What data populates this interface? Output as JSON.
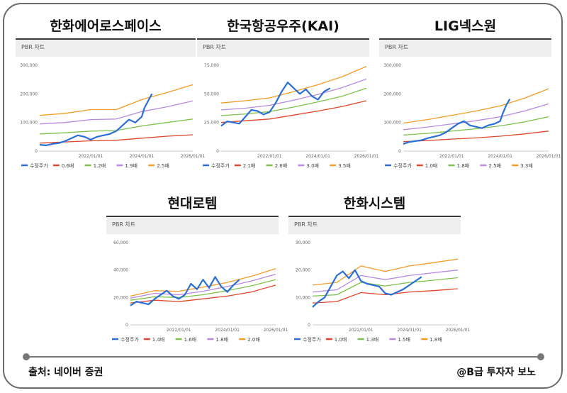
{
  "header_label": "PBR 차트",
  "source": "출처: 네이버 증권",
  "credit": "@B급 투자자 보노",
  "colors": {
    "price": "#2a6fd6",
    "band1": "#e0462a",
    "band2": "#7cc24a",
    "band3": "#b78ae0",
    "band4": "#f39c27"
  },
  "chart_data": [
    {
      "type": "line",
      "title": "한화에어로스페이스",
      "ylim": [
        0,
        300000
      ],
      "yticks": [
        "0",
        "100,000",
        "200,000",
        "300,000"
      ],
      "xrange": [
        2020.0,
        2026.0
      ],
      "xticks": [
        {
          "v": 2022.0,
          "label": "2022/01/01"
        },
        {
          "v": 2024.0,
          "label": "2024/01/01"
        },
        {
          "v": 2026.0,
          "label": "2026/01/01"
        }
      ],
      "series": [
        {
          "name": "수정주가",
          "x": [
            2020.0,
            2020.25,
            2020.5,
            2020.75,
            2021.0,
            2021.25,
            2021.5,
            2021.75,
            2022.0,
            2022.25,
            2022.5,
            2022.75,
            2023.0,
            2023.25,
            2023.5,
            2023.75,
            2024.0,
            2024.1,
            2024.25,
            2024.4
          ],
          "y": [
            22000,
            20000,
            25000,
            28000,
            35000,
            45000,
            55000,
            50000,
            40000,
            50000,
            55000,
            60000,
            70000,
            90000,
            110000,
            100000,
            120000,
            150000,
            175000,
            200000
          ]
        },
        {
          "name": "0.6배",
          "x": [
            2020.0,
            2021.0,
            2022.0,
            2023.0,
            2024.0,
            2025.0,
            2026.0
          ],
          "y": [
            28000,
            32000,
            36000,
            38000,
            45000,
            52000,
            57000
          ]
        },
        {
          "name": "1.2배",
          "x": [
            2020.0,
            2021.0,
            2022.0,
            2023.0,
            2024.0,
            2025.0,
            2026.0
          ],
          "y": [
            60000,
            64000,
            70000,
            72000,
            88000,
            100000,
            112000
          ]
        },
        {
          "name": "1.9배",
          "x": [
            2020.0,
            2021.0,
            2022.0,
            2023.0,
            2024.0,
            2025.0,
            2026.0
          ],
          "y": [
            95000,
            100000,
            110000,
            112000,
            138000,
            155000,
            175000
          ]
        },
        {
          "name": "2.5배",
          "x": [
            2020.0,
            2021.0,
            2022.0,
            2023.0,
            2024.0,
            2025.0,
            2026.0
          ],
          "y": [
            125000,
            132000,
            145000,
            145000,
            180000,
            205000,
            232000
          ]
        }
      ]
    },
    {
      "type": "line",
      "title": "한국항공우주(KAI)",
      "ylim": [
        0,
        75000
      ],
      "yticks": [
        "0",
        "25,000",
        "50,000",
        "75,000"
      ],
      "xrange": [
        2020.0,
        2026.0
      ],
      "xticks": [
        {
          "v": 2022.0,
          "label": "2022/01/01"
        },
        {
          "v": 2024.0,
          "label": "2024/01/01"
        },
        {
          "v": 2026.0,
          "label": "2026/01/01"
        }
      ],
      "series": [
        {
          "name": "수정주가",
          "x": [
            2020.0,
            2020.25,
            2020.5,
            2020.75,
            2021.0,
            2021.25,
            2021.5,
            2021.75,
            2022.0,
            2022.25,
            2022.5,
            2022.75,
            2023.0,
            2023.25,
            2023.5,
            2023.75,
            2024.0,
            2024.25,
            2024.5
          ],
          "y": [
            22000,
            26000,
            25000,
            24000,
            30000,
            36000,
            35000,
            32000,
            34000,
            42000,
            52000,
            60000,
            55000,
            50000,
            54000,
            48000,
            45000,
            52000,
            55000
          ]
        },
        {
          "name": "2.1배",
          "x": [
            2020.0,
            2021.0,
            2022.0,
            2023.0,
            2024.0,
            2025.0,
            2026.0
          ],
          "y": [
            25000,
            26500,
            28000,
            31500,
            35000,
            39000,
            44000
          ]
        },
        {
          "name": "2.6배",
          "x": [
            2020.0,
            2021.0,
            2022.0,
            2023.0,
            2024.0,
            2025.0,
            2026.0
          ],
          "y": [
            31000,
            32500,
            34500,
            38500,
            43000,
            48000,
            55000
          ]
        },
        {
          "name": "3.0배",
          "x": [
            2020.0,
            2021.0,
            2022.0,
            2023.0,
            2024.0,
            2025.0,
            2026.0
          ],
          "y": [
            36000,
            37500,
            40000,
            44500,
            49500,
            55500,
            63000
          ]
        },
        {
          "name": "3.5배",
          "x": [
            2020.0,
            2021.0,
            2022.0,
            2023.0,
            2024.0,
            2025.0,
            2026.0
          ],
          "y": [
            42000,
            44000,
            46500,
            52000,
            58000,
            65000,
            74000
          ]
        }
      ]
    },
    {
      "type": "line",
      "title": "LIG넥스원",
      "ylim": [
        0,
        300000
      ],
      "yticks": [
        "0",
        "100,000",
        "200,000",
        "300,000"
      ],
      "xrange": [
        2020.0,
        2026.0
      ],
      "xticks": [
        {
          "v": 2022.0,
          "label": "2022/01/01"
        },
        {
          "v": 2024.0,
          "label": "2024/01/01"
        },
        {
          "v": 2026.0,
          "label": "2026/01/01"
        }
      ],
      "series": [
        {
          "name": "수정주가",
          "x": [
            2020.0,
            2020.25,
            2020.5,
            2020.75,
            2021.0,
            2021.25,
            2021.5,
            2021.75,
            2022.0,
            2022.25,
            2022.5,
            2022.75,
            2023.0,
            2023.25,
            2023.5,
            2023.75,
            2024.0,
            2024.1,
            2024.25,
            2024.4
          ],
          "y": [
            25000,
            32000,
            35000,
            38000,
            45000,
            50000,
            55000,
            65000,
            80000,
            95000,
            105000,
            90000,
            85000,
            80000,
            90000,
            95000,
            105000,
            130000,
            160000,
            182000
          ]
        },
        {
          "name": "1.0배",
          "x": [
            2020.0,
            2021.0,
            2022.0,
            2023.0,
            2024.0,
            2025.0,
            2026.0
          ],
          "y": [
            33000,
            37000,
            42000,
            46000,
            52000,
            60000,
            70000
          ]
        },
        {
          "name": "1.8배",
          "x": [
            2020.0,
            2021.0,
            2022.0,
            2023.0,
            2024.0,
            2025.0,
            2026.0
          ],
          "y": [
            56000,
            62000,
            70000,
            78000,
            88000,
            102000,
            120000
          ]
        },
        {
          "name": "2.5배",
          "x": [
            2020.0,
            2021.0,
            2022.0,
            2023.0,
            2024.0,
            2025.0,
            2026.0
          ],
          "y": [
            75000,
            84000,
            95000,
            106000,
            120000,
            140000,
            165000
          ]
        },
        {
          "name": "3.3배",
          "x": [
            2020.0,
            2021.0,
            2022.0,
            2023.0,
            2024.0,
            2025.0,
            2026.0
          ],
          "y": [
            98000,
            110000,
            125000,
            140000,
            158000,
            185000,
            218000
          ]
        }
      ]
    },
    {
      "type": "line",
      "title": "현대로템",
      "ylim": [
        0,
        60000
      ],
      "yticks": [
        "0",
        "20,000",
        "40,000",
        "60,000"
      ],
      "xrange": [
        2020.0,
        2026.0
      ],
      "xticks": [
        {
          "v": 2022.0,
          "label": "2022/01/01"
        },
        {
          "v": 2024.0,
          "label": "2024/01/01"
        },
        {
          "v": 2026.0,
          "label": "2026/01/01"
        }
      ],
      "series": [
        {
          "name": "수정주가",
          "x": [
            2020.0,
            2020.25,
            2020.5,
            2020.75,
            2021.0,
            2021.25,
            2021.5,
            2021.75,
            2022.0,
            2022.25,
            2022.5,
            2022.75,
            2023.0,
            2023.25,
            2023.5,
            2023.75,
            2024.0,
            2024.25,
            2024.5
          ],
          "y": [
            14000,
            17000,
            16000,
            15000,
            19000,
            22000,
            25000,
            21000,
            19000,
            22000,
            30000,
            26000,
            33000,
            27000,
            35000,
            28000,
            24000,
            29000,
            33000
          ]
        },
        {
          "name": "1.4배",
          "x": [
            2020.0,
            2021.0,
            2022.0,
            2023.0,
            2024.0,
            2025.0,
            2026.0
          ],
          "y": [
            16000,
            18000,
            17000,
            19000,
            21000,
            24000,
            29000
          ]
        },
        {
          "name": "1.6배",
          "x": [
            2020.0,
            2021.0,
            2022.0,
            2023.0,
            2024.0,
            2025.0,
            2026.0
          ],
          "y": [
            18000,
            20500,
            20000,
            22000,
            25000,
            28500,
            33000
          ]
        },
        {
          "name": "1.8배",
          "x": [
            2020.0,
            2021.0,
            2022.0,
            2023.0,
            2024.0,
            2025.0,
            2026.0
          ],
          "y": [
            19500,
            23000,
            22000,
            24500,
            28000,
            32000,
            37000
          ]
        },
        {
          "name": "2.0배",
          "x": [
            2020.0,
            2021.0,
            2022.0,
            2023.0,
            2024.0,
            2025.0,
            2026.0
          ],
          "y": [
            21000,
            25000,
            24500,
            27500,
            31000,
            35500,
            41000
          ]
        }
      ]
    },
    {
      "type": "line",
      "title": "한화시스템",
      "ylim": [
        0,
        30000
      ],
      "yticks": [
        "0",
        "10,000",
        "20,000",
        "30,000"
      ],
      "xrange": [
        2020.0,
        2026.0
      ],
      "xticks": [
        {
          "v": 2022.0,
          "label": "2022/01/01"
        },
        {
          "v": 2024.0,
          "label": "2024/01/01"
        },
        {
          "v": 2026.0,
          "label": "2026/01/01"
        }
      ],
      "series": [
        {
          "name": "수정주가",
          "x": [
            2020.0,
            2020.25,
            2020.5,
            2020.75,
            2021.0,
            2021.25,
            2021.5,
            2021.75,
            2022.0,
            2022.25,
            2022.5,
            2022.75,
            2023.0,
            2023.25,
            2023.5,
            2023.75,
            2024.0,
            2024.25,
            2024.5
          ],
          "y": [
            6500,
            8500,
            10000,
            14000,
            18000,
            19500,
            17000,
            20000,
            16000,
            15000,
            14500,
            14000,
            11500,
            11000,
            12000,
            13000,
            14500,
            16000,
            17500
          ]
        },
        {
          "name": "1.0배",
          "x": [
            2020.0,
            2021.0,
            2022.0,
            2023.0,
            2024.0,
            2025.0,
            2026.0
          ],
          "y": [
            8000,
            8500,
            11800,
            11000,
            12000,
            12500,
            13200
          ]
        },
        {
          "name": "1.3배",
          "x": [
            2020.0,
            2021.0,
            2022.0,
            2023.0,
            2024.0,
            2025.0,
            2026.0
          ],
          "y": [
            10500,
            11000,
            15500,
            14200,
            15500,
            16300,
            17200
          ]
        },
        {
          "name": "1.5배",
          "x": [
            2020.0,
            2021.0,
            2022.0,
            2023.0,
            2024.0,
            2025.0,
            2026.0
          ],
          "y": [
            12000,
            12800,
            18000,
            16500,
            18000,
            19000,
            20000
          ]
        },
        {
          "name": "1.8배",
          "x": [
            2020.0,
            2021.0,
            2022.0,
            2023.0,
            2024.0,
            2025.0,
            2026.0
          ],
          "y": [
            14500,
            15500,
            21500,
            19500,
            21500,
            22700,
            24000
          ]
        }
      ]
    }
  ]
}
